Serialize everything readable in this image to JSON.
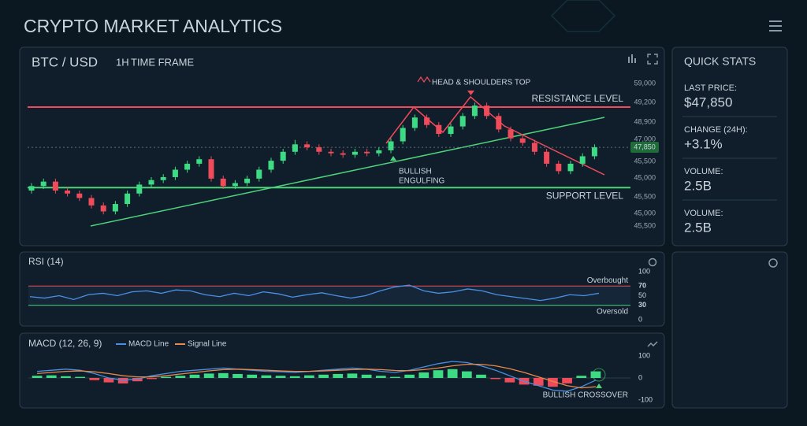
{
  "header": {
    "title": "CRYPTO MARKET ANALYTICS"
  },
  "price_chart": {
    "symbol": "BTC / USD",
    "timeframe_value": "1H",
    "timeframe_label": "TIME FRAME",
    "axis_labels": [
      "59,000",
      "49,200",
      "48,900",
      "47,000",
      "47,850",
      "45,500",
      "45,000",
      "45,500",
      "45,000",
      "45,500"
    ],
    "ylim": [
      45000,
      50150
    ],
    "resistance": 49200,
    "support": 46500,
    "last_price": 47850,
    "resistance_label": "RESISTANCE LEVEL",
    "support_label": "SUPPORT LEVEL",
    "pattern_label": "HEAD & SHOULDERS TOP",
    "engulfing_label": [
      "BULLISH",
      "ENGULFING"
    ],
    "candles": [
      [
        46400,
        46650,
        46300,
        46550
      ],
      [
        46550,
        46800,
        46450,
        46700
      ],
      [
        46700,
        46800,
        46300,
        46400
      ],
      [
        46400,
        46500,
        46200,
        46300
      ],
      [
        46300,
        46400,
        46050,
        46150
      ],
      [
        46150,
        46250,
        45800,
        45900
      ],
      [
        45900,
        46000,
        45600,
        45700
      ],
      [
        45700,
        46050,
        45600,
        45950
      ],
      [
        45950,
        46400,
        45850,
        46300
      ],
      [
        46300,
        46700,
        46200,
        46600
      ],
      [
        46600,
        46850,
        46500,
        46750
      ],
      [
        46750,
        46950,
        46650,
        46850
      ],
      [
        46850,
        47200,
        46750,
        47100
      ],
      [
        47100,
        47400,
        47000,
        47300
      ],
      [
        47300,
        47550,
        47200,
        47450
      ],
      [
        47450,
        47550,
        46700,
        46800
      ],
      [
        46800,
        46900,
        46450,
        46550
      ],
      [
        46550,
        46750,
        46450,
        46650
      ],
      [
        46650,
        46900,
        46550,
        46800
      ],
      [
        46800,
        47200,
        46700,
        47100
      ],
      [
        47100,
        47500,
        47000,
        47400
      ],
      [
        47400,
        47800,
        47300,
        47700
      ],
      [
        47700,
        48100,
        47600,
        47950
      ],
      [
        47950,
        48050,
        47750,
        47850
      ],
      [
        47850,
        47950,
        47600,
        47700
      ],
      [
        47700,
        47800,
        47550,
        47650
      ],
      [
        47650,
        47750,
        47500,
        47600
      ],
      [
        47600,
        47800,
        47500,
        47700
      ],
      [
        47700,
        47800,
        47550,
        47650
      ],
      [
        47650,
        47850,
        47550,
        47750
      ],
      [
        47750,
        48150,
        47650,
        48050
      ],
      [
        48050,
        48600,
        47950,
        48500
      ],
      [
        48500,
        48950,
        48400,
        48850
      ],
      [
        48850,
        48950,
        48500,
        48600
      ],
      [
        48600,
        48700,
        48200,
        48300
      ],
      [
        48300,
        48650,
        48200,
        48550
      ],
      [
        48550,
        49000,
        48450,
        48900
      ],
      [
        48900,
        49350,
        48800,
        49250
      ],
      [
        49250,
        49350,
        48800,
        48900
      ],
      [
        48900,
        49000,
        48350,
        48450
      ],
      [
        48450,
        48550,
        48050,
        48150
      ],
      [
        48150,
        48250,
        47900,
        48000
      ],
      [
        48000,
        48100,
        47600,
        47700
      ],
      [
        47700,
        47800,
        47200,
        47300
      ],
      [
        47300,
        47400,
        46950,
        47050
      ],
      [
        47050,
        47400,
        46950,
        47300
      ],
      [
        47300,
        47650,
        47200,
        47550
      ],
      [
        47550,
        47950,
        47450,
        47850
      ]
    ]
  },
  "quick_stats": {
    "title": "QUICK STATS",
    "items": [
      {
        "label": "LAST PRICE:",
        "value": "$47,850"
      },
      {
        "label": "CHANGE (24H):",
        "value": "+3.1%"
      },
      {
        "label": "VOLUME:",
        "value": "2.5B"
      },
      {
        "label": "VOLUME:",
        "value": "2.5B"
      }
    ]
  },
  "rsi": {
    "title": "RSI (14)",
    "ylim": [
      0,
      100
    ],
    "yticks": [
      100,
      70,
      50,
      30,
      0
    ],
    "overbought": 70,
    "oversold": 30,
    "overbought_label": "Overbought",
    "oversold_label": "Oversold",
    "color": "#4a90e2",
    "values": [
      48,
      45,
      50,
      42,
      52,
      55,
      50,
      58,
      60,
      55,
      62,
      60,
      52,
      48,
      55,
      50,
      58,
      54,
      47,
      52,
      56,
      50,
      45,
      50,
      60,
      68,
      72,
      60,
      55,
      58,
      64,
      60,
      52,
      48,
      44,
      40,
      45,
      52,
      50,
      55
    ]
  },
  "macd": {
    "title": "MACD (12, 26, 9)",
    "ylim": [
      -150,
      150
    ],
    "yticks": [
      100,
      0,
      -100
    ],
    "annotation": "BULLISH CROSSOVER",
    "histogram": [
      10,
      12,
      8,
      5,
      -10,
      -20,
      -25,
      -15,
      -5,
      5,
      10,
      15,
      20,
      22,
      18,
      15,
      12,
      10,
      8,
      12,
      15,
      18,
      20,
      15,
      10,
      5,
      15,
      25,
      35,
      40,
      30,
      15,
      -5,
      -20,
      -30,
      -35,
      -40,
      -25,
      10,
      30
    ],
    "series": [
      {
        "name": "MACD Line",
        "color": "#4a90e2",
        "values": [
          30,
          35,
          40,
          35,
          20,
          0,
          -10,
          -5,
          10,
          20,
          30,
          35,
          40,
          45,
          40,
          35,
          30,
          28,
          25,
          30,
          35,
          40,
          45,
          40,
          30,
          25,
          35,
          50,
          65,
          75,
          70,
          55,
          35,
          10,
          -15,
          -35,
          -55,
          -60,
          -40,
          -10
        ]
      },
      {
        "name": "Signal Line",
        "color": "#e8894a",
        "values": [
          20,
          25,
          30,
          32,
          28,
          20,
          10,
          5,
          5,
          10,
          18,
          25,
          32,
          38,
          40,
          38,
          35,
          32,
          30,
          30,
          32,
          35,
          38,
          40,
          38,
          34,
          33,
          38,
          45,
          55,
          62,
          62,
          55,
          42,
          25,
          5,
          -15,
          -35,
          -45,
          -40
        ]
      }
    ]
  }
}
